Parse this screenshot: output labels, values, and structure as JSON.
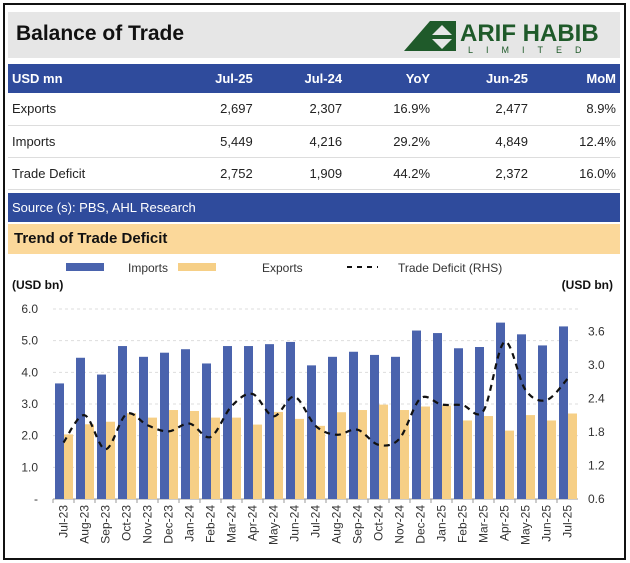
{
  "header": {
    "title": "Balance of Trade",
    "logo_text": "ARIF HABIB",
    "logo_sub": "LIMITED"
  },
  "table": {
    "columns": [
      "USD mn",
      "Jul-25",
      "Jul-24",
      "YoY",
      "Jun-25",
      "MoM"
    ],
    "rows": [
      [
        "Exports",
        "2,697",
        "2,307",
        "16.9%",
        "2,477",
        "8.9%"
      ],
      [
        "Imports",
        "5,449",
        "4,216",
        "29.2%",
        "4,849",
        "12.4%"
      ],
      [
        "Trade Deficit",
        "2,752",
        "1,909",
        "44.2%",
        "2,372",
        "16.0%"
      ]
    ]
  },
  "source": "Source (s): PBS, AHL Research",
  "section_title": "Trend of Trade Deficit",
  "colors": {
    "imports": "#4a63ad",
    "exports": "#f6cf86",
    "deficit": "#111111",
    "header_blue": "#2f4b9c",
    "logo_green": "#1f5a2a"
  },
  "chart_data": {
    "type": "bar",
    "title": "",
    "grid": true,
    "legend": "top",
    "ylabel": "(USD bn)",
    "ylabel_right": "(USD bn)",
    "ylim": [
      0,
      6
    ],
    "yticks": [
      "-",
      "1.0",
      "2.0",
      "3.0",
      "4.0",
      "5.0",
      "6.0"
    ],
    "ylim_right": [
      0.6,
      4.0
    ],
    "yticks_right": [
      "0.6",
      "1.2",
      "1.8",
      "2.4",
      "3.0",
      "3.6"
    ],
    "categories": [
      "Jul-23",
      "Aug-23",
      "Sep-23",
      "Oct-23",
      "Nov-23",
      "Dec-23",
      "Jan-24",
      "Feb-24",
      "Mar-24",
      "Apr-24",
      "May-24",
      "Jun-24",
      "Jul-24",
      "Aug-24",
      "Sep-24",
      "Oct-24",
      "Nov-24",
      "Dec-24",
      "Jan-25",
      "Feb-25",
      "Mar-25",
      "Apr-25",
      "May-25",
      "Jun-25",
      "Jul-25"
    ],
    "series": [
      {
        "name": "Imports",
        "type": "bar",
        "axis": "left",
        "values": [
          3.65,
          4.46,
          3.93,
          4.83,
          4.49,
          4.62,
          4.73,
          4.28,
          4.83,
          4.83,
          4.89,
          4.96,
          4.22,
          4.49,
          4.65,
          4.55,
          4.49,
          5.32,
          5.24,
          4.76,
          4.8,
          5.57,
          5.2,
          4.85,
          5.45
        ]
      },
      {
        "name": "Exports",
        "type": "bar",
        "axis": "left",
        "values": [
          2.04,
          2.36,
          2.44,
          2.71,
          2.57,
          2.81,
          2.78,
          2.57,
          2.57,
          2.35,
          2.75,
          2.53,
          2.31,
          2.74,
          2.81,
          2.98,
          2.81,
          2.92,
          2.95,
          2.48,
          2.62,
          2.16,
          2.65,
          2.48,
          2.7
        ]
      },
      {
        "name": "Trade Deficit (RHS)",
        "type": "line",
        "axis": "right",
        "values": [
          1.61,
          2.1,
          1.49,
          2.12,
          1.92,
          1.81,
          1.95,
          1.71,
          2.26,
          2.48,
          2.08,
          2.43,
          1.91,
          1.75,
          1.84,
          1.57,
          1.68,
          2.4,
          2.29,
          2.28,
          2.18,
          3.41,
          2.55,
          2.37,
          2.75
        ]
      }
    ]
  }
}
